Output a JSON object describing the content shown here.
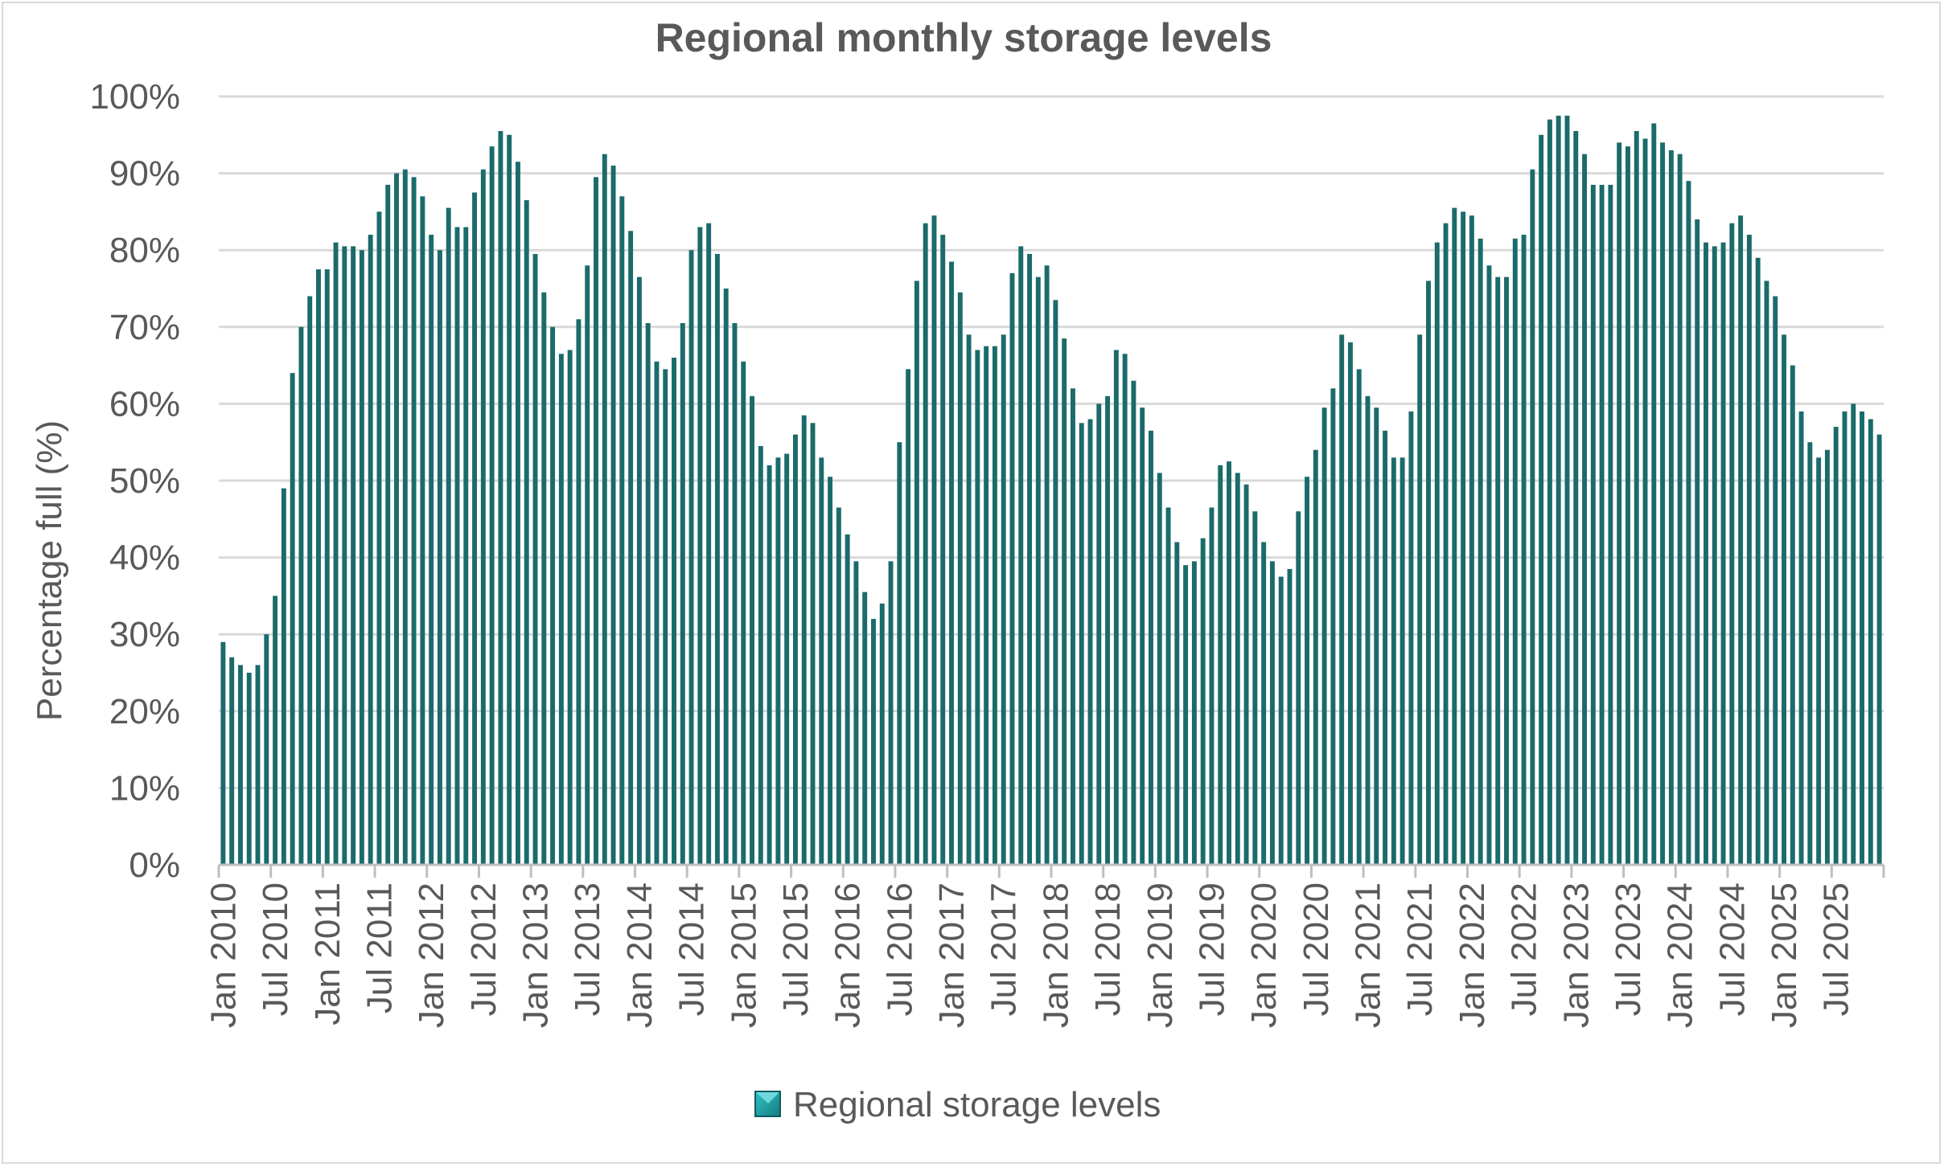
{
  "chart_data": {
    "type": "bar",
    "title": "Regional monthly storage levels",
    "xlabel": "",
    "ylabel": "Percentage full (%)",
    "ylim": [
      0,
      100
    ],
    "y_ticks": [
      "0%",
      "10%",
      "20%",
      "30%",
      "40%",
      "50%",
      "60%",
      "70%",
      "80%",
      "90%",
      "100%"
    ],
    "x_tick_labels": [
      "Jan 2010",
      "Jul 2010",
      "Jan 2011",
      "Jul 2011",
      "Jan 2012",
      "Jul 2012",
      "Jan 2013",
      "Jul 2013",
      "Jan 2014",
      "Jul 2014",
      "Jan 2015",
      "Jul 2015",
      "Jan 2016",
      "Jul 2016",
      "Jan 2017",
      "Jul 2017",
      "Jan 2018",
      "Jul 2018",
      "Jan 2019",
      "Jul 2019",
      "Jan 2020",
      "Jul 2020",
      "Jan 2021",
      "Jul 2021",
      "Jan 2022",
      "Jul 2022",
      "Jan 2023",
      "Jul 2023",
      "Jan 2024",
      "Jul 2024",
      "Jan 2025",
      "Jul 2025"
    ],
    "legend": {
      "position": "bottom",
      "label": "Regional storage levels"
    },
    "grid": true,
    "bar_color": "#1b6b6b",
    "series": [
      {
        "name": "Regional storage levels",
        "start": "Jan 2010",
        "frequency": "monthly",
        "values": [
          29,
          27,
          26,
          25,
          26,
          30,
          35,
          49,
          64,
          70,
          74,
          77.5,
          77.5,
          81,
          80.5,
          80.5,
          80,
          82,
          85,
          88.5,
          90,
          90.5,
          89.5,
          87,
          82,
          80,
          85.5,
          83,
          83,
          87.5,
          90.5,
          93.5,
          95.5,
          95,
          91.5,
          86.5,
          79.5,
          74.5,
          70,
          66.5,
          67,
          71,
          78,
          89.5,
          92.5,
          91,
          87,
          82.5,
          76.5,
          70.5,
          65.5,
          64.5,
          66,
          70.5,
          80,
          83,
          83.5,
          79.5,
          75,
          70.5,
          65.5,
          61,
          54.5,
          52,
          53,
          53.5,
          56,
          58.5,
          57.5,
          53,
          50.5,
          46.5,
          43,
          39.5,
          35.5,
          32,
          34,
          39.5,
          55,
          64.5,
          76,
          83.5,
          84.5,
          82,
          78.5,
          74.5,
          69,
          67,
          67.5,
          67.5,
          69,
          77,
          80.5,
          79.5,
          76.5,
          78,
          73.5,
          68.5,
          62,
          57.5,
          58,
          60,
          61,
          67,
          66.5,
          63,
          59.5,
          56.5,
          51,
          46.5,
          42,
          39,
          39.5,
          42.5,
          46.5,
          52,
          52.5,
          51,
          49.5,
          46,
          42,
          39.5,
          37.5,
          38.5,
          46,
          50.5,
          54,
          59.5,
          62,
          69,
          68,
          64.5,
          61,
          59.5,
          56.5,
          53,
          53,
          59,
          69,
          76,
          81,
          83.5,
          85.5,
          85,
          84.5,
          81.5,
          78,
          76.5,
          76.5,
          81.5,
          82,
          90.5,
          95,
          97,
          97.5,
          97.5,
          95.5,
          92.5,
          88.5,
          88.5,
          88.5,
          94,
          93.5,
          95.5,
          94.5,
          96.5,
          94,
          93,
          92.5,
          89,
          84,
          81,
          80.5,
          81,
          83.5,
          84.5,
          82,
          79,
          76,
          74,
          69,
          65,
          59,
          55,
          53,
          54,
          57,
          59,
          60,
          59,
          58,
          56
        ]
      }
    ]
  }
}
